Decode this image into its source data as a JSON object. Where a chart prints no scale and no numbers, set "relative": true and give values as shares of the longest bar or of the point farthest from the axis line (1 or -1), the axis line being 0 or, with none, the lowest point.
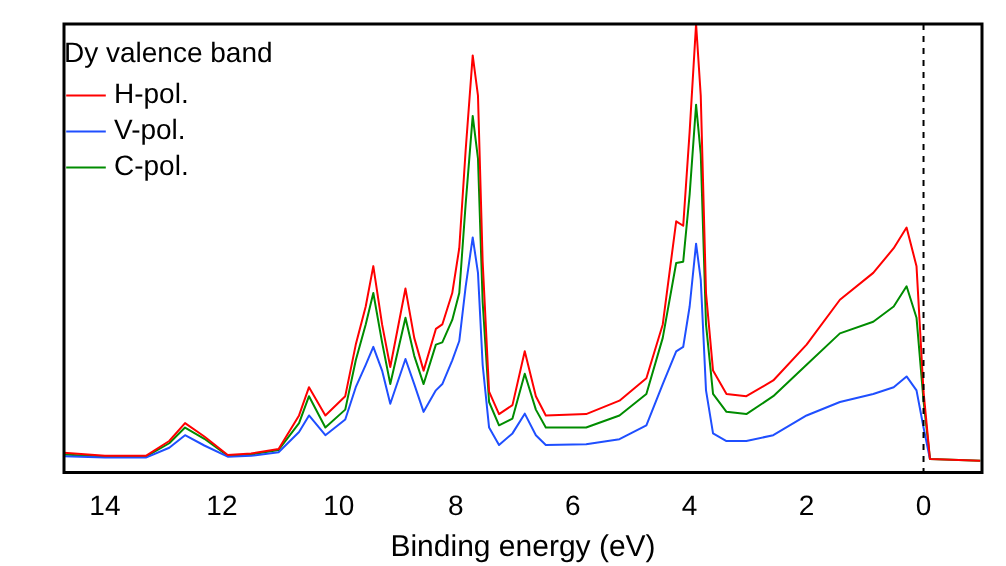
{
  "chart_data": {
    "type": "line",
    "xlabel": "Binding energy (eV)",
    "legend_title": "Dy valence band",
    "relative": true,
    "legend": "top left",
    "grid": false,
    "marker": "none",
    "line_style": "solid",
    "xlim": [
      14.7,
      -1
    ],
    "xticks": [
      14,
      12,
      10,
      8,
      6,
      4,
      2,
      0
    ],
    "x": [
      14.7,
      14,
      13.3,
      12.9,
      12.63,
      12.3,
      11.9,
      11.5,
      11.03,
      10.68,
      10.51,
      10.23,
      9.89,
      9.71,
      9.54,
      9.41,
      9.26,
      9.12,
      8.86,
      8.71,
      8.55,
      8.34,
      8.23,
      8.06,
      7.94,
      7.83,
      7.71,
      7.62,
      7.54,
      7.43,
      7.26,
      7.03,
      6.82,
      6.63,
      6.46,
      5.77,
      5.2,
      4.74,
      4.46,
      4.23,
      4.11,
      4.0,
      3.89,
      3.81,
      3.72,
      3.6,
      3.37,
      3.03,
      2.57,
      2.0,
      1.43,
      0.86,
      0.51,
      0.29,
      0.12,
      0,
      -0.11,
      -0.97
    ],
    "series": [
      {
        "name": "H-pol.",
        "color": "#ff0000",
        "values": [
          0.044,
          0.037,
          0.037,
          0.07,
          0.11,
          0.08,
          0.039,
          0.042,
          0.052,
          0.127,
          0.19,
          0.127,
          0.17,
          0.285,
          0.37,
          0.46,
          0.33,
          0.235,
          0.41,
          0.3,
          0.227,
          0.32,
          0.33,
          0.4,
          0.5,
          0.72,
          0.93,
          0.84,
          0.47,
          0.18,
          0.13,
          0.15,
          0.27,
          0.17,
          0.127,
          0.13,
          0.16,
          0.21,
          0.33,
          0.56,
          0.55,
          0.76,
          1.0,
          0.84,
          0.4,
          0.227,
          0.175,
          0.17,
          0.205,
          0.285,
          0.385,
          0.445,
          0.5,
          0.546,
          0.46,
          0.18,
          0.03,
          0.026
        ]
      },
      {
        "name": "V-pol.",
        "color": "#1f4fff",
        "values": [
          0.036,
          0.033,
          0.033,
          0.055,
          0.083,
          0.06,
          0.035,
          0.037,
          0.045,
          0.09,
          0.127,
          0.083,
          0.118,
          0.19,
          0.24,
          0.28,
          0.227,
          0.153,
          0.253,
          0.197,
          0.135,
          0.183,
          0.197,
          0.25,
          0.293,
          0.415,
          0.524,
          0.445,
          0.24,
          0.1,
          0.061,
          0.087,
          0.131,
          0.083,
          0.061,
          0.063,
          0.074,
          0.105,
          0.197,
          0.27,
          0.28,
          0.37,
          0.51,
          0.43,
          0.183,
          0.087,
          0.07,
          0.07,
          0.083,
          0.127,
          0.157,
          0.175,
          0.19,
          0.214,
          0.183,
          0.1,
          0.03,
          null
        ]
      },
      {
        "name": "C-pol.",
        "color": "#008c00",
        "values": [
          0.04,
          0.035,
          0.035,
          0.065,
          0.1,
          0.075,
          0.037,
          0.04,
          0.05,
          0.11,
          0.17,
          0.1,
          0.14,
          0.25,
          0.33,
          0.4,
          0.29,
          0.197,
          0.345,
          0.26,
          0.197,
          0.285,
          0.29,
          0.34,
          0.4,
          0.6,
          0.795,
          0.7,
          0.38,
          0.157,
          0.105,
          0.12,
          0.22,
          0.14,
          0.1,
          0.1,
          0.127,
          0.175,
          0.3,
          0.467,
          0.47,
          0.62,
          0.82,
          0.71,
          0.33,
          0.175,
          0.135,
          0.13,
          0.17,
          0.24,
          0.31,
          0.336,
          0.37,
          0.415,
          0.345,
          0.16,
          0.03,
          0.026
        ]
      }
    ],
    "ref_lines": [
      {
        "axis": "x",
        "value": 0,
        "color": "#000000",
        "line_style": "dashed"
      }
    ]
  }
}
